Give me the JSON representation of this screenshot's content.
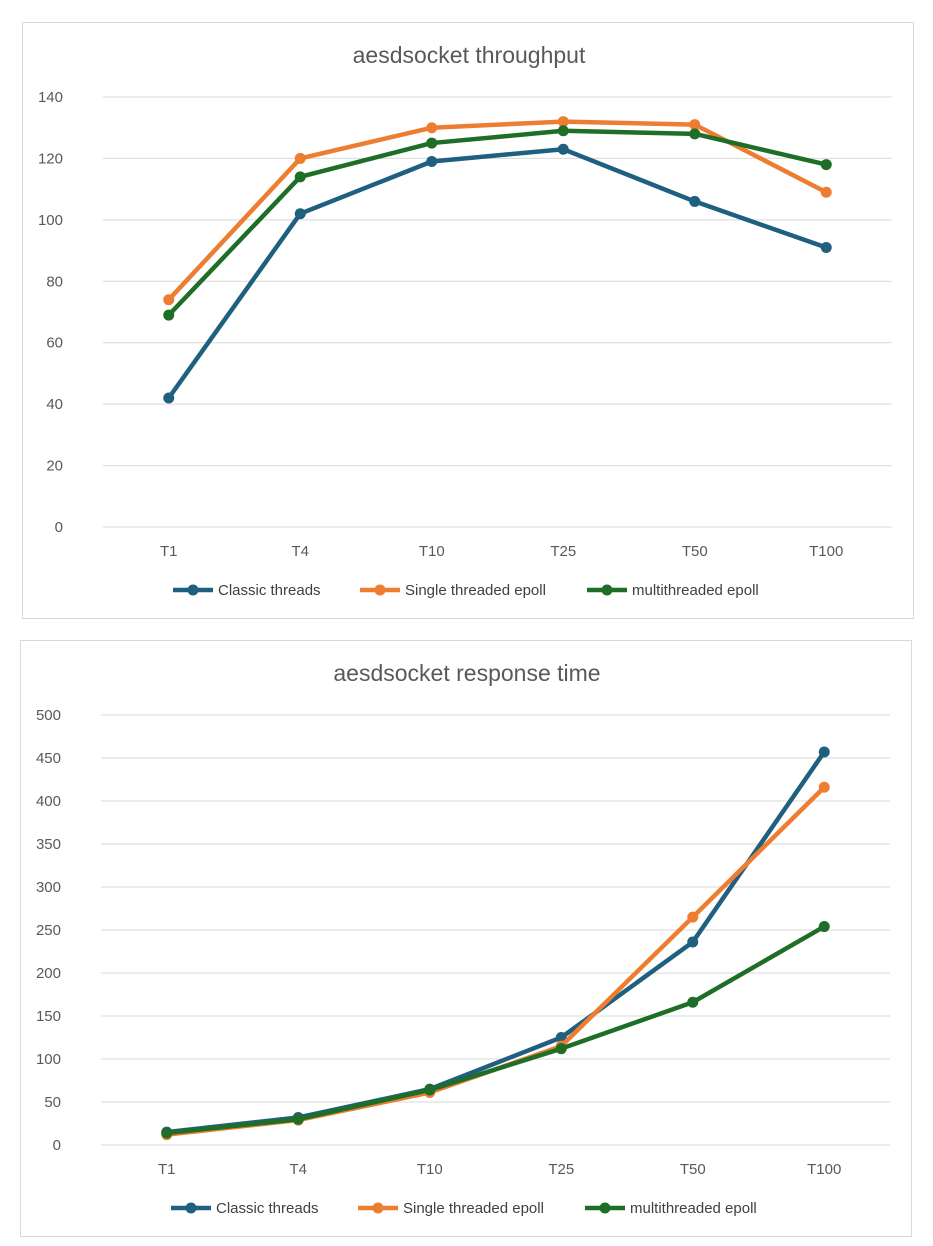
{
  "chart_data": [
    {
      "type": "line",
      "title": "aesdsocket throughput",
      "categories": [
        "T1",
        "T4",
        "T10",
        "T25",
        "T50",
        "T100"
      ],
      "ylim": [
        0,
        140
      ],
      "yticks": [
        0,
        20,
        40,
        60,
        80,
        100,
        120,
        140
      ],
      "grid": true,
      "legend": "bottom",
      "series": [
        {
          "name": "Classic threads",
          "color": "#1f5f7f",
          "values": [
            42,
            102,
            119,
            123,
            106,
            91
          ]
        },
        {
          "name": "Single threaded epoll",
          "color": "#ed7d31",
          "values": [
            74,
            120,
            130,
            132,
            131,
            109
          ]
        },
        {
          "name": "multithreaded epoll",
          "color": "#1e6e27",
          "values": [
            69,
            114,
            125,
            129,
            128,
            118
          ]
        }
      ]
    },
    {
      "type": "line",
      "title": "aesdsocket response time",
      "categories": [
        "T1",
        "T4",
        "T10",
        "T25",
        "T50",
        "T100"
      ],
      "ylim": [
        0,
        500
      ],
      "yticks": [
        0,
        50,
        100,
        150,
        200,
        250,
        300,
        350,
        400,
        450,
        500
      ],
      "grid": true,
      "legend": "bottom",
      "series": [
        {
          "name": "Classic threads",
          "color": "#1f5f7f",
          "values": [
            15,
            32,
            65,
            125,
            236,
            457
          ]
        },
        {
          "name": "Single threaded epoll",
          "color": "#ed7d31",
          "values": [
            12,
            29,
            61,
            115,
            265,
            416
          ]
        },
        {
          "name": "multithreaded epoll",
          "color": "#1e6e27",
          "values": [
            14,
            30,
            64,
            112,
            166,
            254
          ]
        }
      ]
    }
  ]
}
